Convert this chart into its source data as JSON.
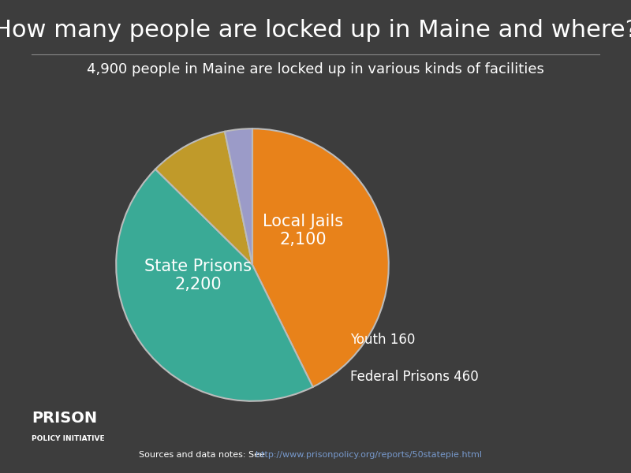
{
  "title": "How many people are locked up in Maine and where?",
  "subtitle": "4,900 people in Maine are locked up in various kinds of facilities",
  "values": [
    2100,
    2200,
    460,
    160
  ],
  "colors": [
    "#E8821A",
    "#3AAA96",
    "#C09A2A",
    "#9B9BC8"
  ],
  "background_color": "#3d3d3d",
  "text_color": "#ffffff",
  "wedge_edge_color": "#bbbbbb",
  "source_text_plain": "Sources and data notes: See ",
  "source_url": "http://www.prisonpolicy.org/reports/50statepie.html",
  "logo_line1": "PRISON",
  "logo_line2": "POLICY INITIATIVE",
  "title_fontsize": 22,
  "subtitle_fontsize": 13,
  "label_fontsize": 15,
  "small_label_fontsize": 12
}
